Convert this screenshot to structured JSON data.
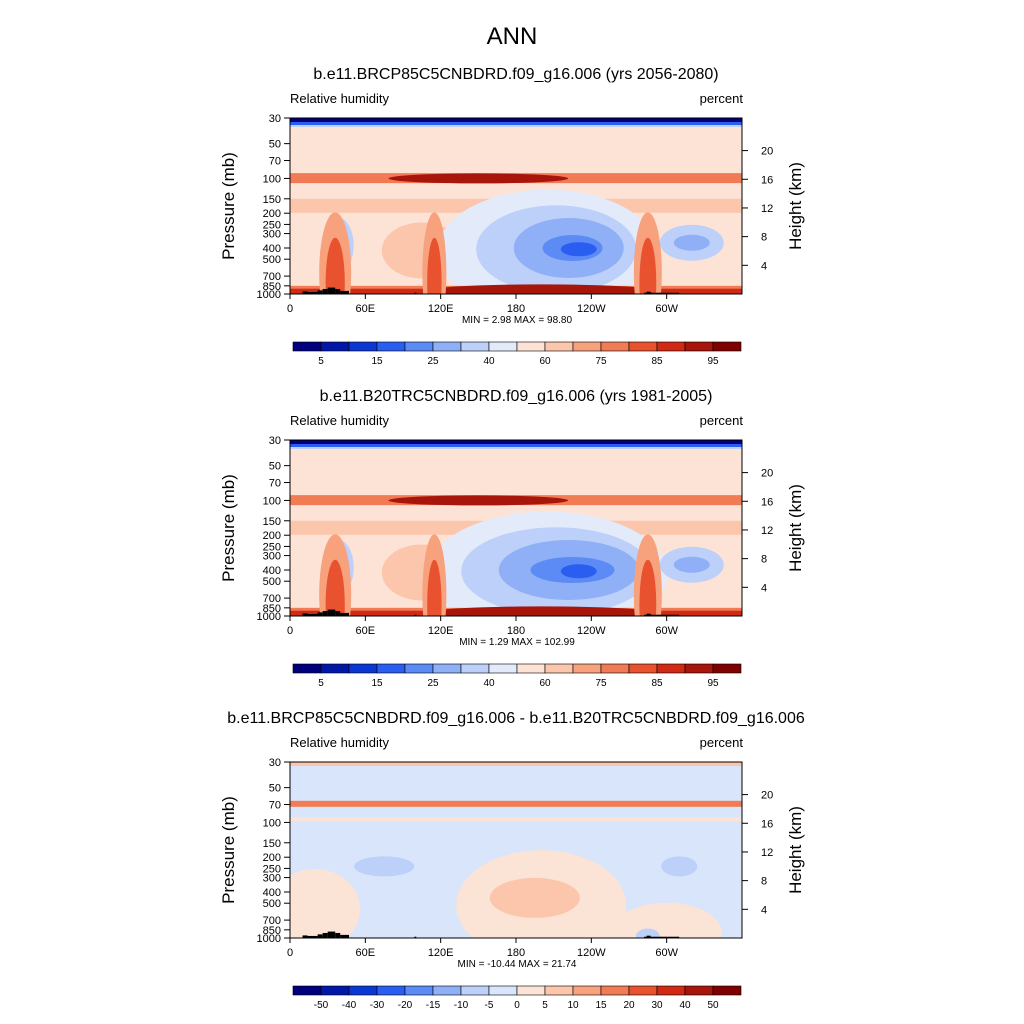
{
  "figure": {
    "title": "ANN"
  },
  "colors": {
    "abs_scale": [
      "#00007f",
      "#0017a8",
      "#0a36d3",
      "#2a5ef0",
      "#5c8bf5",
      "#8fb0f7",
      "#bcd0f9",
      "#e3ebfb",
      "#fde3d6",
      "#fbc6ab",
      "#f7a17d",
      "#f17b55",
      "#e8522e",
      "#d02a14",
      "#a8150b",
      "#7f0000"
    ],
    "diff_scale": [
      "#00007f",
      "#0017a8",
      "#0a36d3",
      "#2a5ef0",
      "#5c8bf5",
      "#8fb0f7",
      "#bcd0f9",
      "#d8e5fb",
      "#fbe3d5",
      "#fbc6ab",
      "#f7a17d",
      "#f17b55",
      "#e8522e",
      "#d02a14",
      "#a8150b",
      "#7f0000"
    ],
    "land_mask": "#000000"
  },
  "chart_data": [
    {
      "type": "heatmap",
      "id": "future",
      "title": "b.e11.BRCP85C5CNBDRD.f09_g16.006 (yrs 2056-2080)",
      "left_caption": "Relative humidity",
      "right_caption": "percent",
      "ylabel": "Pressure (mb)",
      "ylabel_right": "Height (km)",
      "x_ticks": [
        "0",
        "60E",
        "120E",
        "180",
        "120W",
        "60W"
      ],
      "x_tick_lons": [
        0,
        60,
        120,
        180,
        240,
        300
      ],
      "xlim": [
        0,
        360
      ],
      "y_ticks": [
        "30",
        "50",
        "70",
        "100",
        "150",
        "200",
        "250",
        "300",
        "400",
        "500",
        "700",
        "850",
        "1000"
      ],
      "y_tick_values": [
        30,
        50,
        70,
        100,
        150,
        200,
        250,
        300,
        400,
        500,
        700,
        850,
        1000
      ],
      "ylim": [
        30,
        1000
      ],
      "height_ticks": [
        "20",
        "16",
        "12",
        "8",
        "4"
      ],
      "height_tick_values": [
        20,
        16,
        12,
        8,
        4
      ],
      "stats": "MIN =   2.98  MAX =  98.80",
      "colorbar_labels": [
        "5",
        "15",
        "25",
        "40",
        "60",
        "75",
        "85",
        "95"
      ],
      "colorbar_levels": [
        5,
        10,
        15,
        20,
        25,
        30,
        40,
        50,
        60,
        70,
        75,
        80,
        85,
        90,
        95
      ],
      "min": 2.98,
      "max": 98.8
    },
    {
      "type": "heatmap",
      "id": "historical",
      "title": "b.e11.B20TRC5CNBDRD.f09_g16.006 (yrs 1981-2005)",
      "left_caption": "Relative humidity",
      "right_caption": "percent",
      "ylabel": "Pressure (mb)",
      "ylabel_right": "Height (km)",
      "x_ticks": [
        "0",
        "60E",
        "120E",
        "180",
        "120W",
        "60W"
      ],
      "x_tick_lons": [
        0,
        60,
        120,
        180,
        240,
        300
      ],
      "xlim": [
        0,
        360
      ],
      "y_ticks": [
        "30",
        "50",
        "70",
        "100",
        "150",
        "200",
        "250",
        "300",
        "400",
        "500",
        "700",
        "850",
        "1000"
      ],
      "y_tick_values": [
        30,
        50,
        70,
        100,
        150,
        200,
        250,
        300,
        400,
        500,
        700,
        850,
        1000
      ],
      "ylim": [
        30,
        1000
      ],
      "height_ticks": [
        "20",
        "16",
        "12",
        "8",
        "4"
      ],
      "height_tick_values": [
        20,
        16,
        12,
        8,
        4
      ],
      "stats": "MIN =   1.29  MAX = 102.99",
      "colorbar_labels": [
        "5",
        "15",
        "25",
        "40",
        "60",
        "75",
        "85",
        "95"
      ],
      "colorbar_levels": [
        5,
        10,
        15,
        20,
        25,
        30,
        40,
        50,
        60,
        70,
        75,
        80,
        85,
        90,
        95
      ],
      "min": 1.29,
      "max": 102.99
    },
    {
      "type": "heatmap",
      "id": "difference",
      "title": "b.e11.BRCP85C5CNBDRD.f09_g16.006 - b.e11.B20TRC5CNBDRD.f09_g16.006",
      "left_caption": "Relative humidity",
      "right_caption": "percent",
      "ylabel": "Pressure (mb)",
      "ylabel_right": "Height (km)",
      "x_ticks": [
        "0",
        "60E",
        "120E",
        "180",
        "120W",
        "60W"
      ],
      "x_tick_lons": [
        0,
        60,
        120,
        180,
        240,
        300
      ],
      "xlim": [
        0,
        360
      ],
      "y_ticks": [
        "30",
        "50",
        "70",
        "100",
        "150",
        "200",
        "250",
        "300",
        "400",
        "500",
        "700",
        "850",
        "1000"
      ],
      "y_tick_values": [
        30,
        50,
        70,
        100,
        150,
        200,
        250,
        300,
        400,
        500,
        700,
        850,
        1000
      ],
      "ylim": [
        30,
        1000
      ],
      "height_ticks": [
        "20",
        "16",
        "12",
        "8",
        "4"
      ],
      "height_tick_values": [
        20,
        16,
        12,
        8,
        4
      ],
      "stats": "MIN = -10.44  MAX =  21.74",
      "colorbar_labels": [
        "-50",
        "-40",
        "-30",
        "-20",
        "-15",
        "-10",
        "-5",
        "0",
        "5",
        "10",
        "15",
        "20",
        "30",
        "40",
        "50"
      ],
      "colorbar_levels": [
        -50,
        -40,
        -30,
        -20,
        -15,
        -10,
        -5,
        0,
        5,
        10,
        15,
        20,
        30,
        40,
        50
      ],
      "min": -10.44,
      "max": 21.74
    }
  ]
}
